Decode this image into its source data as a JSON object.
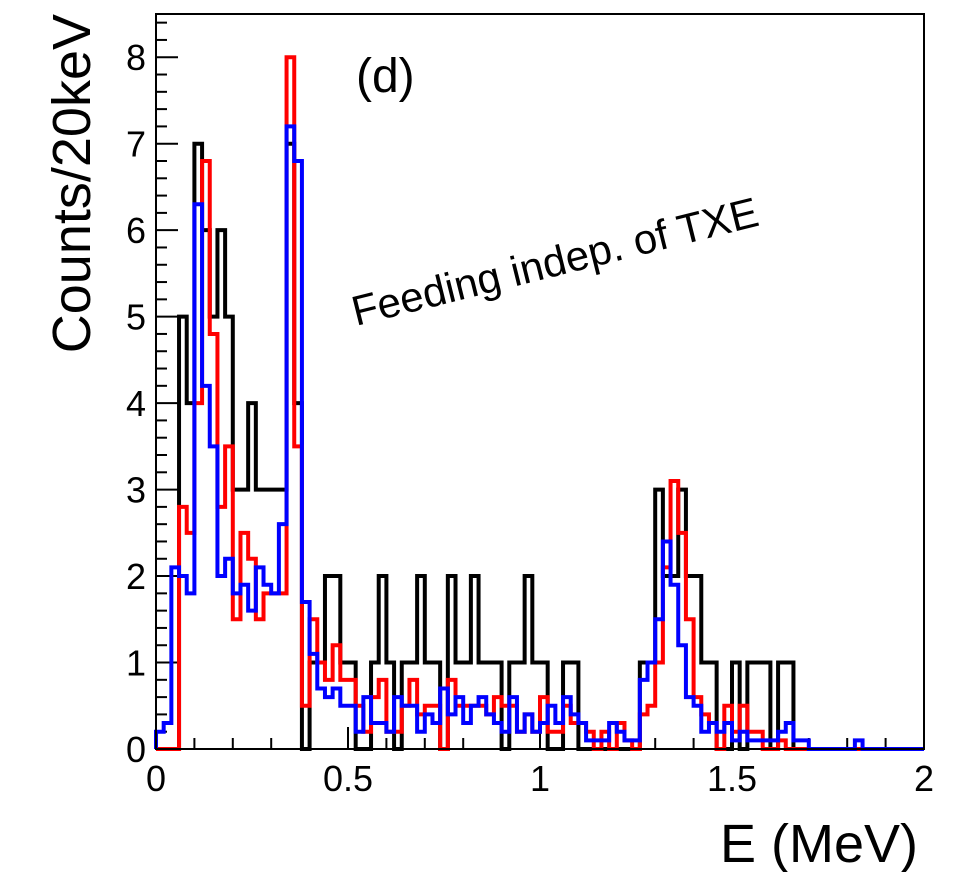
{
  "chart_data": {
    "type": "histogram",
    "panel_label": "(d)",
    "annotation": "Feeding indep. of TXE",
    "xlabel": "E (MeV)",
    "ylabel": "Counts/20keV",
    "xlim": [
      0,
      2
    ],
    "ylim": [
      0,
      8.5
    ],
    "bin_width": 0.02,
    "x_ticks": [
      0,
      0.5,
      1,
      1.5,
      2
    ],
    "x_tick_labels": [
      "0",
      "0.5",
      "1",
      "1.5",
      "2"
    ],
    "y_ticks": [
      0,
      1,
      2,
      3,
      4,
      5,
      6,
      7,
      8
    ],
    "y_tick_labels": [
      "0",
      "1",
      "2",
      "3",
      "4",
      "5",
      "6",
      "7",
      "8"
    ],
    "grid": false,
    "series": [
      {
        "color": "#000000",
        "values": [
          0,
          0,
          0,
          5,
          4,
          7,
          6,
          5,
          6,
          5,
          3,
          3,
          4,
          3,
          3,
          3,
          3,
          7,
          4,
          0,
          1,
          1,
          2,
          2,
          1,
          1,
          0,
          0,
          1,
          2,
          1,
          0,
          1,
          1,
          2,
          1,
          1,
          0,
          2,
          1,
          1,
          2,
          1,
          1,
          1,
          0,
          1,
          1,
          2,
          1,
          1,
          0,
          0,
          1,
          1,
          0,
          0,
          0,
          0,
          0,
          0,
          0,
          0,
          1,
          1,
          3,
          2,
          2,
          3,
          2,
          2,
          1,
          1,
          0,
          0,
          1,
          0,
          1,
          1,
          1,
          0,
          1,
          1,
          0,
          0,
          0,
          0,
          0,
          0,
          0,
          0,
          0,
          0,
          0,
          0,
          0,
          0,
          0,
          0,
          0
        ]
      },
      {
        "color": "#ff0000",
        "values": [
          0,
          0,
          0,
          2.8,
          2.5,
          4,
          6.8,
          4.8,
          2.8,
          3.5,
          1.5,
          2.5,
          2.2,
          1.5,
          1.8,
          1.8,
          1.8,
          8,
          3.5,
          0.5,
          1.5,
          1,
          0.8,
          1.2,
          0.8,
          0.8,
          0.5,
          0.2,
          0.6,
          0.8,
          0.2,
          0.2,
          0.5,
          0.8,
          0.4,
          0.5,
          0.5,
          0,
          0.8,
          0.5,
          0.5,
          0.5,
          0.5,
          0.4,
          0.6,
          0.5,
          0.5,
          0.2,
          0.4,
          0.2,
          0.6,
          0.2,
          0.2,
          0.5,
          0.3,
          0.3,
          0.2,
          0,
          0.2,
          0,
          0.3,
          0.1,
          0,
          0.4,
          0.5,
          1,
          2.1,
          3.1,
          2.5,
          1.5,
          0.6,
          0.4,
          0.3,
          0,
          0.5,
          0.2,
          0.5,
          0.2,
          0.2,
          0,
          0,
          0.1,
          0,
          0,
          0,
          0,
          0,
          0,
          0,
          0,
          0,
          0,
          0,
          0,
          0,
          0,
          0,
          0,
          0,
          0
        ]
      },
      {
        "color": "#0000ff",
        "values": [
          0.2,
          0.3,
          2.1,
          2,
          1.8,
          6.3,
          4.2,
          3.5,
          2,
          2.2,
          1.8,
          1.9,
          1.6,
          2.1,
          1.9,
          1.8,
          2.6,
          7.2,
          6.8,
          1.7,
          1.1,
          0.7,
          0.6,
          0.7,
          0.5,
          0.5,
          0.2,
          0.6,
          0.3,
          0.3,
          0.2,
          0.6,
          0.5,
          0.5,
          0.2,
          0.4,
          0.3,
          0.7,
          0.4,
          0.6,
          0.3,
          0.5,
          0.6,
          0.4,
          0.3,
          0.2,
          0.6,
          0.2,
          0.4,
          0.2,
          0.3,
          0.5,
          0.3,
          0.6,
          0.4,
          0.3,
          0.1,
          0.1,
          0.1,
          0.3,
          0.2,
          0.1,
          0.1,
          0.8,
          1,
          1.5,
          2.4,
          1.9,
          1.2,
          0.6,
          0.5,
          0.2,
          0.3,
          0.2,
          0.3,
          0.1,
          0.2,
          0.1,
          0.1,
          0.1,
          0.1,
          0.2,
          0.3,
          0.1,
          0.1,
          0,
          0,
          0,
          0,
          0,
          0,
          0.1,
          0,
          0,
          0,
          0,
          0,
          0,
          0,
          0
        ]
      }
    ]
  }
}
